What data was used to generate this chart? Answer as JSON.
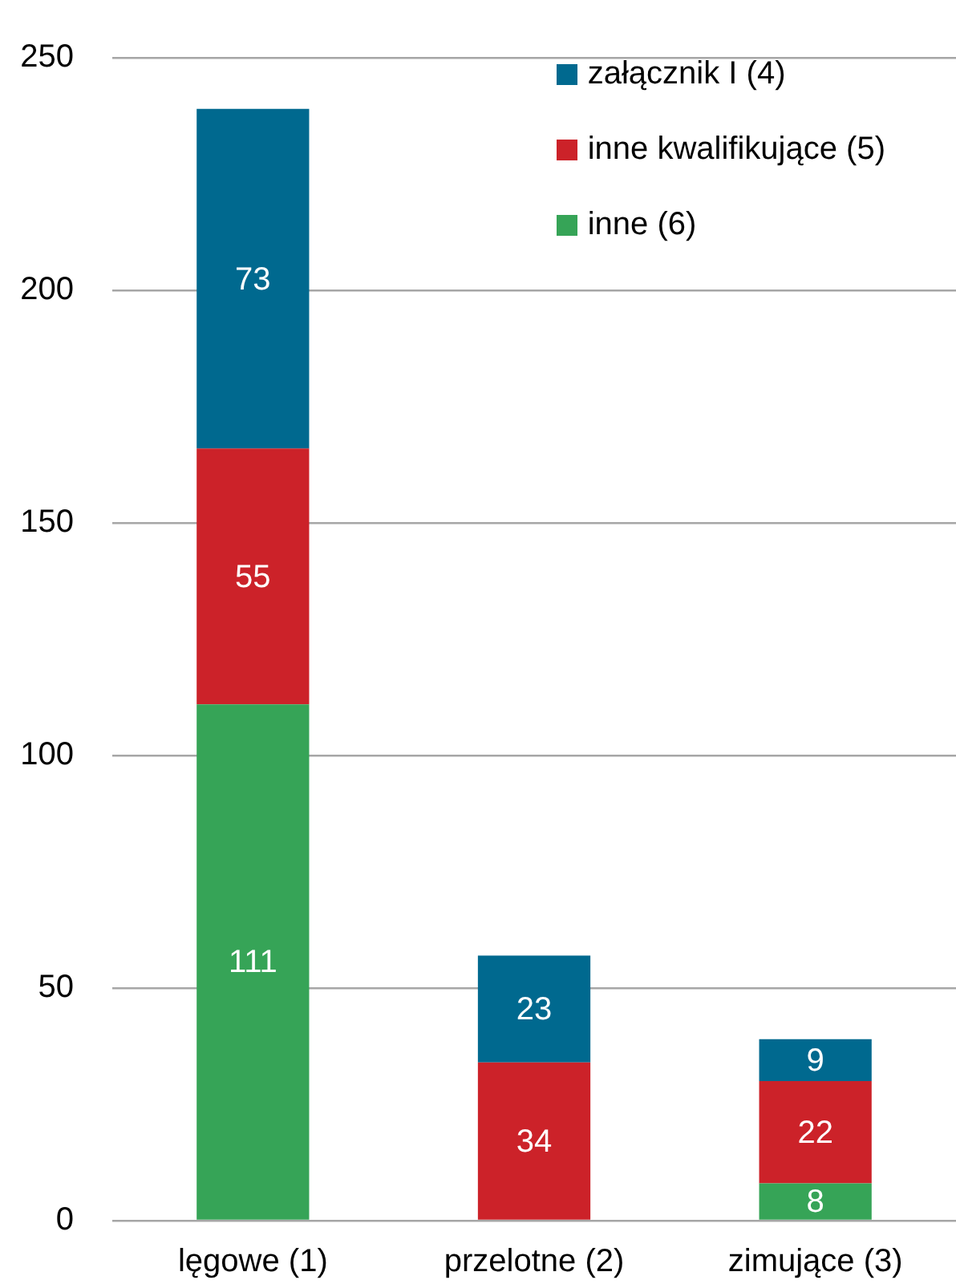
{
  "chart_data": {
    "type": "bar",
    "categories": [
      "lęgowe (1)",
      "przelotne (2)",
      "zimujące (3)"
    ],
    "series": [
      {
        "name": "inne (6)",
        "color": "#36a457",
        "values": [
          111,
          null,
          8
        ]
      },
      {
        "name": "inne kwalifikujące (5)",
        "color": "#cc2229",
        "values": [
          55,
          34,
          22
        ]
      },
      {
        "name": "załącznik I (4)",
        "color": "#00698f",
        "values": [
          73,
          23,
          9
        ]
      }
    ],
    "stacked": true,
    "ylim": [
      0,
      250
    ],
    "yticks": [
      0,
      50,
      100,
      150,
      200,
      250
    ],
    "grid": "y",
    "legend": "top right",
    "data_labels": true
  }
}
